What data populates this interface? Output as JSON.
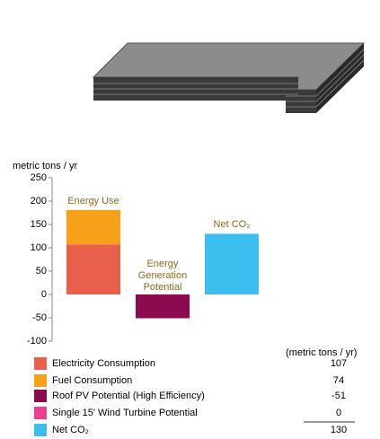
{
  "chart_data": {
    "type": "stacked_bar",
    "ylabel": "metric tons / yr",
    "categories": [
      "Energy Use",
      "Energy Generation Potential",
      "Net CO₂"
    ],
    "series": [
      {
        "name": "Electricity Consumption",
        "color": "#e8604c",
        "values": [
          107,
          null,
          null
        ]
      },
      {
        "name": "Fuel Consumption",
        "color": "#f7a11a",
        "values": [
          74,
          null,
          null
        ]
      },
      {
        "name": "Roof PV Potential (High Efficiency)",
        "color": "#8b0a50",
        "values": [
          null,
          -51,
          null
        ]
      },
      {
        "name": "Single 15' Wind Turbine Potential",
        "color": "#e8408a",
        "values": [
          null,
          0,
          null
        ]
      },
      {
        "name": "Net CO₂",
        "color": "#3cbfef",
        "values": [
          null,
          null,
          130
        ]
      }
    ],
    "ylim": [
      -100,
      250
    ],
    "yticks": [
      -100,
      -50,
      0,
      50,
      100,
      150,
      200,
      250
    ],
    "legend_header": "(metric tons / yr)"
  }
}
